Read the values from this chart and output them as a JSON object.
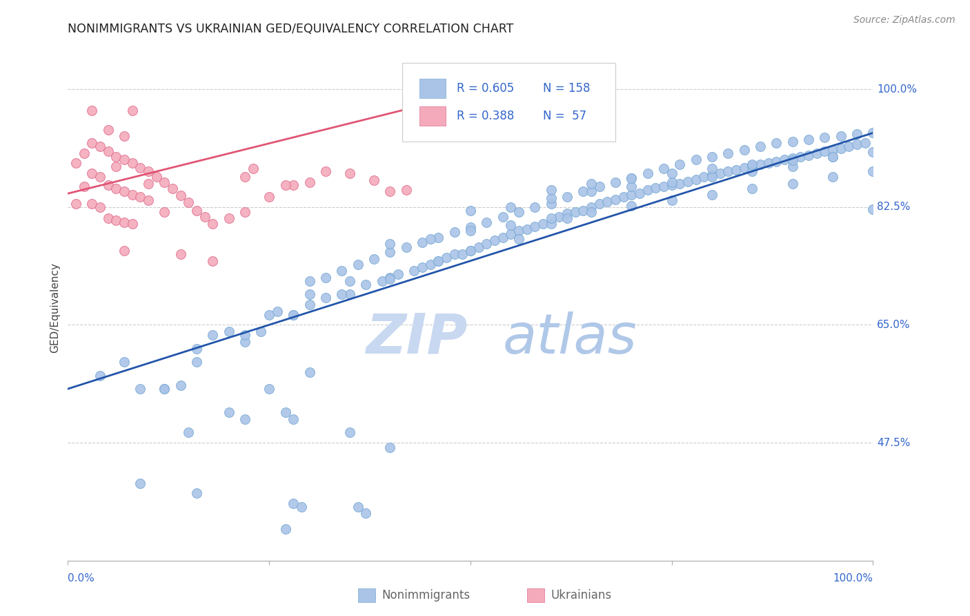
{
  "title": "NONIMMIGRANTS VS UKRAINIAN GED/EQUIVALENCY CORRELATION CHART",
  "source": "Source: ZipAtlas.com",
  "ylabel": "GED/Equivalency",
  "ytick_labels": [
    "100.0%",
    "82.5%",
    "65.0%",
    "47.5%"
  ],
  "ytick_values": [
    1.0,
    0.825,
    0.65,
    0.475
  ],
  "legend_blue_r": "0.605",
  "legend_blue_n": "158",
  "legend_pink_r": "0.388",
  "legend_pink_n": " 57",
  "blue_color": "#aac4e8",
  "blue_edge_color": "#7aaad4",
  "pink_color": "#f4aabb",
  "pink_edge_color": "#e07090",
  "blue_line_color": "#2255aa",
  "pink_line_color": "#e05575",
  "legend_r_color": "#3366cc",
  "background_color": "#ffffff",
  "grid_color": "#cccccc",
  "axis_label_color": "#3366cc",
  "title_color": "#222222",
  "source_color": "#888888",
  "ylabel_color": "#444444",
  "watermark_zip_color": "#c8d8f0",
  "watermark_atlas_color": "#b0c8e8",
  "title_fontsize": 12.5,
  "axis_fontsize": 11,
  "tick_fontsize": 11,
  "legend_fontsize": 12,
  "source_fontsize": 10,
  "marker_size": 100,
  "xlim": [
    0.0,
    1.0
  ],
  "ylim": [
    0.3,
    1.05
  ],
  "blue_line_x0": 0.0,
  "blue_line_y0": 0.555,
  "blue_line_x1": 1.0,
  "blue_line_y1": 0.935,
  "pink_line_x0": 0.0,
  "pink_line_y0": 0.845,
  "pink_line_x1": 0.42,
  "pink_line_y1": 0.97,
  "blue_x": [
    0.04,
    0.09,
    0.12,
    0.16,
    0.18,
    0.22,
    0.24,
    0.26,
    0.28,
    0.3,
    0.32,
    0.35,
    0.37,
    0.39,
    0.4,
    0.41,
    0.43,
    0.44,
    0.45,
    0.46,
    0.47,
    0.48,
    0.49,
    0.5,
    0.51,
    0.52,
    0.53,
    0.54,
    0.55,
    0.56,
    0.57,
    0.58,
    0.59,
    0.6,
    0.61,
    0.62,
    0.63,
    0.64,
    0.65,
    0.66,
    0.67,
    0.68,
    0.69,
    0.7,
    0.71,
    0.72,
    0.73,
    0.74,
    0.75,
    0.76,
    0.77,
    0.78,
    0.79,
    0.8,
    0.81,
    0.82,
    0.83,
    0.84,
    0.85,
    0.86,
    0.87,
    0.88,
    0.89,
    0.9,
    0.91,
    0.92,
    0.93,
    0.94,
    0.95,
    0.96,
    0.97,
    0.98,
    0.99,
    1.0,
    0.3,
    0.32,
    0.34,
    0.36,
    0.38,
    0.4,
    0.42,
    0.44,
    0.46,
    0.48,
    0.5,
    0.52,
    0.54,
    0.56,
    0.58,
    0.6,
    0.62,
    0.64,
    0.66,
    0.68,
    0.7,
    0.72,
    0.74,
    0.76,
    0.78,
    0.8,
    0.82,
    0.84,
    0.86,
    0.88,
    0.9,
    0.92,
    0.94,
    0.96,
    0.98,
    1.0,
    0.5,
    0.55,
    0.6,
    0.65,
    0.7,
    0.75,
    0.8,
    0.85,
    0.9,
    0.95,
    0.4,
    0.45,
    0.5,
    0.55,
    0.6,
    0.65,
    0.7,
    0.75,
    0.8,
    0.85,
    0.9,
    0.95,
    1.0,
    0.6,
    0.65,
    0.7,
    0.75,
    0.8,
    0.85,
    0.9,
    0.95,
    1.0,
    0.2,
    0.25,
    0.3,
    0.35,
    0.15,
    0.2,
    0.25,
    0.3,
    0.12,
    0.16,
    0.22,
    0.28,
    0.34,
    0.4,
    0.46,
    0.5,
    0.56,
    0.62
  ],
  "blue_y": [
    0.575,
    0.555,
    0.555,
    0.615,
    0.635,
    0.625,
    0.64,
    0.67,
    0.665,
    0.68,
    0.69,
    0.695,
    0.71,
    0.715,
    0.72,
    0.725,
    0.73,
    0.735,
    0.74,
    0.745,
    0.75,
    0.755,
    0.755,
    0.76,
    0.765,
    0.77,
    0.775,
    0.78,
    0.785,
    0.79,
    0.792,
    0.796,
    0.8,
    0.8,
    0.81,
    0.815,
    0.818,
    0.82,
    0.825,
    0.83,
    0.833,
    0.836,
    0.84,
    0.843,
    0.845,
    0.85,
    0.853,
    0.855,
    0.858,
    0.86,
    0.863,
    0.866,
    0.87,
    0.872,
    0.875,
    0.878,
    0.88,
    0.883,
    0.886,
    0.888,
    0.89,
    0.892,
    0.895,
    0.897,
    0.9,
    0.902,
    0.905,
    0.908,
    0.91,
    0.912,
    0.915,
    0.918,
    0.92,
    0.822,
    0.715,
    0.72,
    0.73,
    0.74,
    0.748,
    0.758,
    0.765,
    0.772,
    0.78,
    0.788,
    0.795,
    0.802,
    0.81,
    0.818,
    0.825,
    0.83,
    0.84,
    0.848,
    0.855,
    0.862,
    0.868,
    0.875,
    0.882,
    0.888,
    0.895,
    0.9,
    0.905,
    0.91,
    0.915,
    0.92,
    0.922,
    0.925,
    0.928,
    0.93,
    0.933,
    0.935,
    0.82,
    0.825,
    0.838,
    0.848,
    0.855,
    0.862,
    0.87,
    0.878,
    0.885,
    0.9,
    0.77,
    0.778,
    0.79,
    0.798,
    0.808,
    0.818,
    0.827,
    0.835,
    0.843,
    0.852,
    0.86,
    0.87,
    0.878,
    0.85,
    0.86,
    0.868,
    0.875,
    0.882,
    0.888,
    0.894,
    0.9,
    0.907,
    0.64,
    0.665,
    0.695,
    0.715,
    0.49,
    0.52,
    0.555,
    0.58,
    0.555,
    0.595,
    0.635,
    0.665,
    0.695,
    0.718,
    0.745,
    0.76,
    0.778,
    0.808
  ],
  "blue_x_outliers": [
    0.07,
    0.14,
    0.22,
    0.27,
    0.28,
    0.35,
    0.4
  ],
  "blue_y_outliers": [
    0.595,
    0.56,
    0.51,
    0.52,
    0.51,
    0.49,
    0.468
  ],
  "blue_x_low": [
    0.09,
    0.16,
    0.28,
    0.29,
    0.36,
    0.37
  ],
  "blue_y_low": [
    0.415,
    0.4,
    0.385,
    0.38,
    0.38,
    0.37
  ],
  "blue_x_vlow": [
    0.27
  ],
  "blue_y_vlow": [
    0.347
  ],
  "pink_x": [
    0.01,
    0.01,
    0.02,
    0.02,
    0.03,
    0.03,
    0.03,
    0.04,
    0.04,
    0.04,
    0.05,
    0.05,
    0.05,
    0.06,
    0.06,
    0.06,
    0.07,
    0.07,
    0.07,
    0.07,
    0.08,
    0.08,
    0.08,
    0.09,
    0.09,
    0.1,
    0.1,
    0.11,
    0.12,
    0.12,
    0.13,
    0.14,
    0.15,
    0.16,
    0.17,
    0.18,
    0.2,
    0.22,
    0.23,
    0.25,
    0.28,
    0.3,
    0.32,
    0.35,
    0.38,
    0.4,
    0.42,
    0.08,
    0.05,
    0.03,
    0.07,
    0.06,
    0.1,
    0.14,
    0.18,
    0.22,
    0.27
  ],
  "pink_y": [
    0.89,
    0.83,
    0.905,
    0.855,
    0.92,
    0.875,
    0.83,
    0.915,
    0.87,
    0.825,
    0.908,
    0.858,
    0.808,
    0.9,
    0.852,
    0.805,
    0.895,
    0.848,
    0.802,
    0.76,
    0.89,
    0.843,
    0.8,
    0.883,
    0.84,
    0.878,
    0.835,
    0.87,
    0.862,
    0.818,
    0.852,
    0.842,
    0.832,
    0.82,
    0.81,
    0.8,
    0.808,
    0.818,
    0.882,
    0.84,
    0.858,
    0.862,
    0.878,
    0.875,
    0.865,
    0.848,
    0.85,
    0.968,
    0.94,
    0.968,
    0.93,
    0.885,
    0.86,
    0.755,
    0.745,
    0.87,
    0.858
  ]
}
